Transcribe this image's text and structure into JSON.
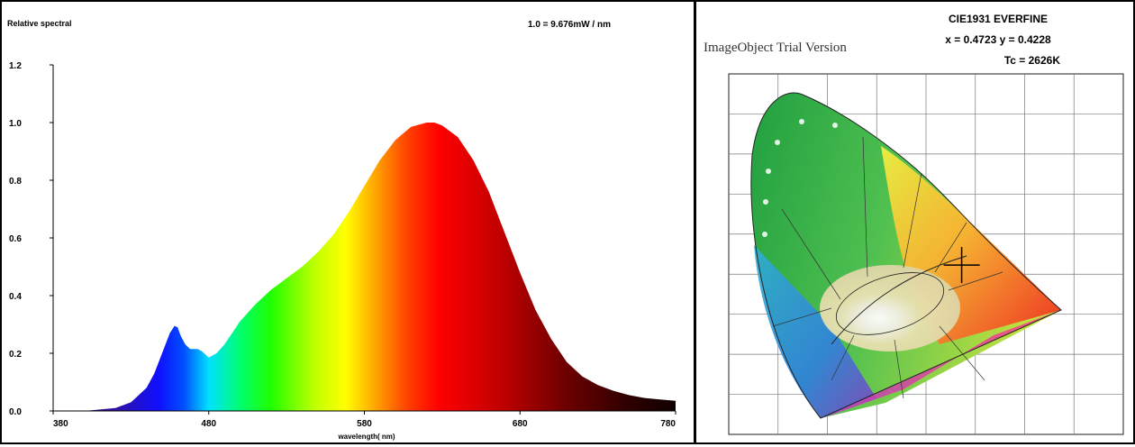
{
  "spectrum_chart": {
    "top_left_label": "Relative spectral",
    "reference_note": "1.0 = 9.676mW / nm",
    "xlabel": "wavelength( nm)",
    "x_ticks": [
      "380",
      "480",
      "580",
      "680",
      "780"
    ],
    "y_ticks": [
      "0.0",
      "0.2",
      "0.4",
      "0.6",
      "0.8",
      "1.0",
      "1.2"
    ]
  },
  "cie_panel": {
    "title": "CIE1931 EVERFINE",
    "coords": "x = 0.4723 y = 0.4228",
    "cct": "Tc = 2626K",
    "watermark": "ImageObject Trial Version"
  },
  "chart_data": [
    {
      "type": "area",
      "title": "",
      "xlabel": "wavelength( nm)",
      "ylabel": "Relative spectral",
      "xlim": [
        380,
        780
      ],
      "ylim": [
        0,
        1.2
      ],
      "grid": false,
      "x": [
        380,
        400,
        420,
        430,
        440,
        445,
        450,
        455,
        458,
        460,
        462,
        465,
        468,
        470,
        473,
        476,
        480,
        485,
        490,
        495,
        500,
        510,
        520,
        530,
        540,
        550,
        560,
        570,
        580,
        590,
        600,
        610,
        620,
        625,
        630,
        640,
        650,
        660,
        670,
        680,
        690,
        700,
        710,
        720,
        730,
        740,
        750,
        760,
        770,
        780
      ],
      "values": [
        0.0,
        0.0,
        0.01,
        0.03,
        0.08,
        0.13,
        0.2,
        0.27,
        0.295,
        0.29,
        0.26,
        0.23,
        0.215,
        0.215,
        0.215,
        0.205,
        0.185,
        0.2,
        0.23,
        0.27,
        0.31,
        0.37,
        0.42,
        0.46,
        0.5,
        0.55,
        0.61,
        0.69,
        0.78,
        0.87,
        0.94,
        0.985,
        1.0,
        1.0,
        0.99,
        0.95,
        0.87,
        0.76,
        0.62,
        0.48,
        0.35,
        0.25,
        0.17,
        0.12,
        0.09,
        0.07,
        0.055,
        0.045,
        0.04,
        0.035
      ]
    },
    {
      "type": "scatter",
      "title": "CIE1931 EVERFINE",
      "xlim": [
        0,
        0.8
      ],
      "ylim": [
        0,
        0.9
      ],
      "series": [
        {
          "values": [
            {
              "x": 0.4723,
              "y": 0.4228
            }
          ]
        }
      ]
    }
  ]
}
